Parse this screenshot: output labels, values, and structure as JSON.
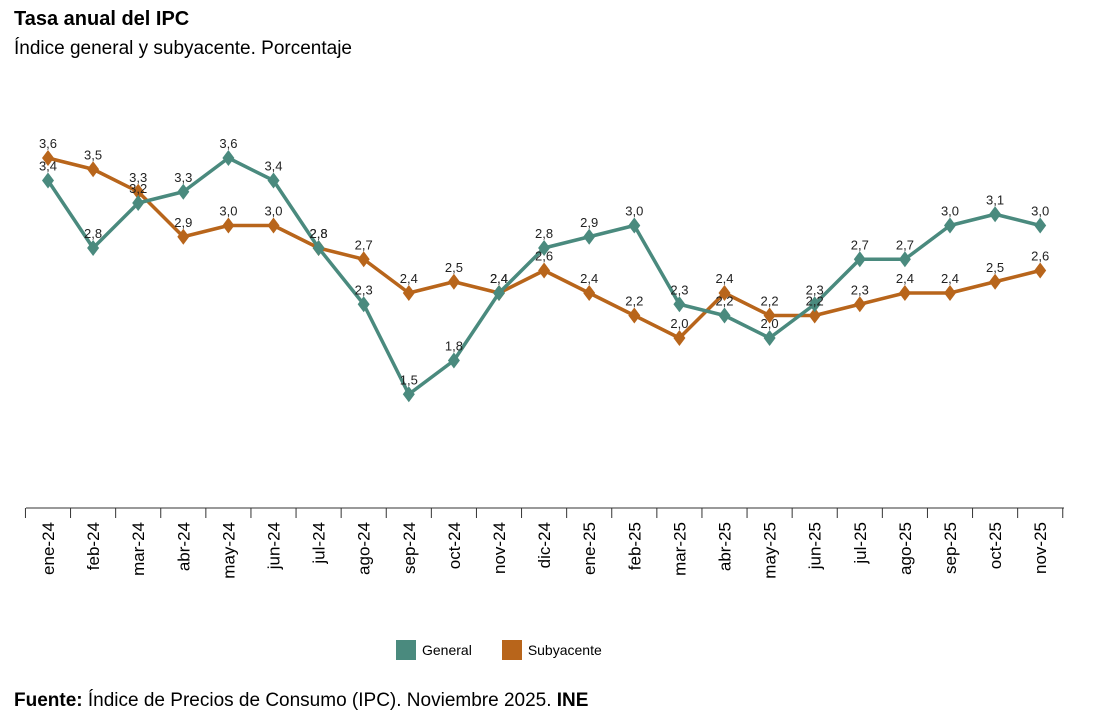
{
  "title": "Tasa anual del IPC",
  "subtitle": "Índice general y subyacente. Porcentaje",
  "source": {
    "label": "Fuente:",
    "text": " Índice de Precios de Consumo (IPC). Noviembre 2025. ",
    "org": "INE"
  },
  "colors": {
    "general": "#4a8a7e",
    "subyacente": "#b8651b"
  },
  "chart_data": {
    "type": "line",
    "title": "Tasa anual del IPC",
    "subtitle": "Índice general y subyacente. Porcentaje",
    "categories": [
      "ene-24",
      "feb-24",
      "mar-24",
      "abr-24",
      "may-24",
      "jun-24",
      "jul-24",
      "ago-24",
      "sep-24",
      "oct-24",
      "nov-24",
      "dic-24",
      "ene-25",
      "feb-25",
      "mar-25",
      "abr-25",
      "may-25",
      "jun-25",
      "jul-25",
      "ago-25",
      "sep-25",
      "oct-25",
      "nov-25"
    ],
    "series": [
      {
        "name": "General",
        "values": [
          3.4,
          2.8,
          3.2,
          3.3,
          3.6,
          3.4,
          2.8,
          2.3,
          1.5,
          1.8,
          2.4,
          2.8,
          2.9,
          3.0,
          2.3,
          2.2,
          2.0,
          2.3,
          2.7,
          2.7,
          3.0,
          3.1,
          3.0
        ]
      },
      {
        "name": "Subyacente",
        "values": [
          3.6,
          3.5,
          3.3,
          2.9,
          3.0,
          3.0,
          2.8,
          2.7,
          2.4,
          2.5,
          2.4,
          2.6,
          2.4,
          2.2,
          2.0,
          2.4,
          2.2,
          2.2,
          2.3,
          2.4,
          2.4,
          2.5,
          2.6
        ]
      }
    ],
    "legend": "bottom",
    "grid": false
  }
}
